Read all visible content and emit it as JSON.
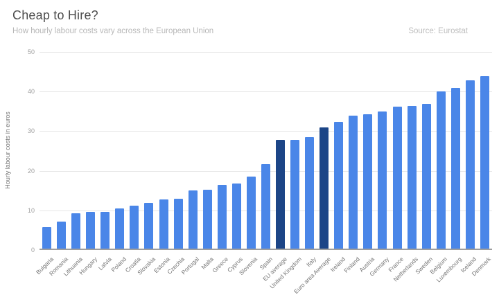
{
  "header": {
    "title": "Cheap to Hire?",
    "subtitle": "How hourly labour costs vary across the European Union",
    "source": "Source: Eurostat"
  },
  "chart_data": {
    "type": "bar",
    "title": "Cheap to Hire?",
    "subtitle": "How hourly labour costs vary across the European Union",
    "source": "Source: Eurostat",
    "xlabel": "",
    "ylabel": "Hourly labour costs in euros",
    "ylim": [
      0,
      50
    ],
    "yticks": [
      0,
      10,
      20,
      30,
      40,
      50
    ],
    "grid": true,
    "legend": "none",
    "categories": [
      "Bulgaria",
      "Romania",
      "Lithuania",
      "Hungary",
      "Latvia",
      "Poland",
      "Croatia",
      "Slovakia",
      "Estonia",
      "Czechia",
      "Portugal",
      "Malta",
      "Greece",
      "Cyprus",
      "Slovenia",
      "Spain",
      "EU average",
      "United Kingdom",
      "Italy",
      "Euro area Average",
      "Ireland",
      "Finland",
      "Austria",
      "Germany",
      "France",
      "Netherlands",
      "Sweden",
      "Belgium",
      "Luxembourg",
      "Iceland",
      "Denmark"
    ],
    "values": [
      5.4,
      6.9,
      9.0,
      9.2,
      9.3,
      10.1,
      10.9,
      11.6,
      12.4,
      12.6,
      14.7,
      14.9,
      16.1,
      16.5,
      18.1,
      21.4,
      27.4,
      27.5,
      28.2,
      30.6,
      32.0,
      33.6,
      34.0,
      34.6,
      35.9,
      36.0,
      36.6,
      39.7,
      40.6,
      42.5,
      43.5
    ],
    "highlight_categories": [
      "EU average",
      "Euro area Average"
    ],
    "highlight_indices": [
      16,
      19
    ],
    "colors": {
      "bar": "#4a86e8",
      "highlight": "#1c4587",
      "gridline": "#e6e6e6",
      "axis": "#9e9e9e",
      "title": "#4d4d4d",
      "subtitle": "#b7b7b7",
      "tick_text": "#757575"
    }
  }
}
